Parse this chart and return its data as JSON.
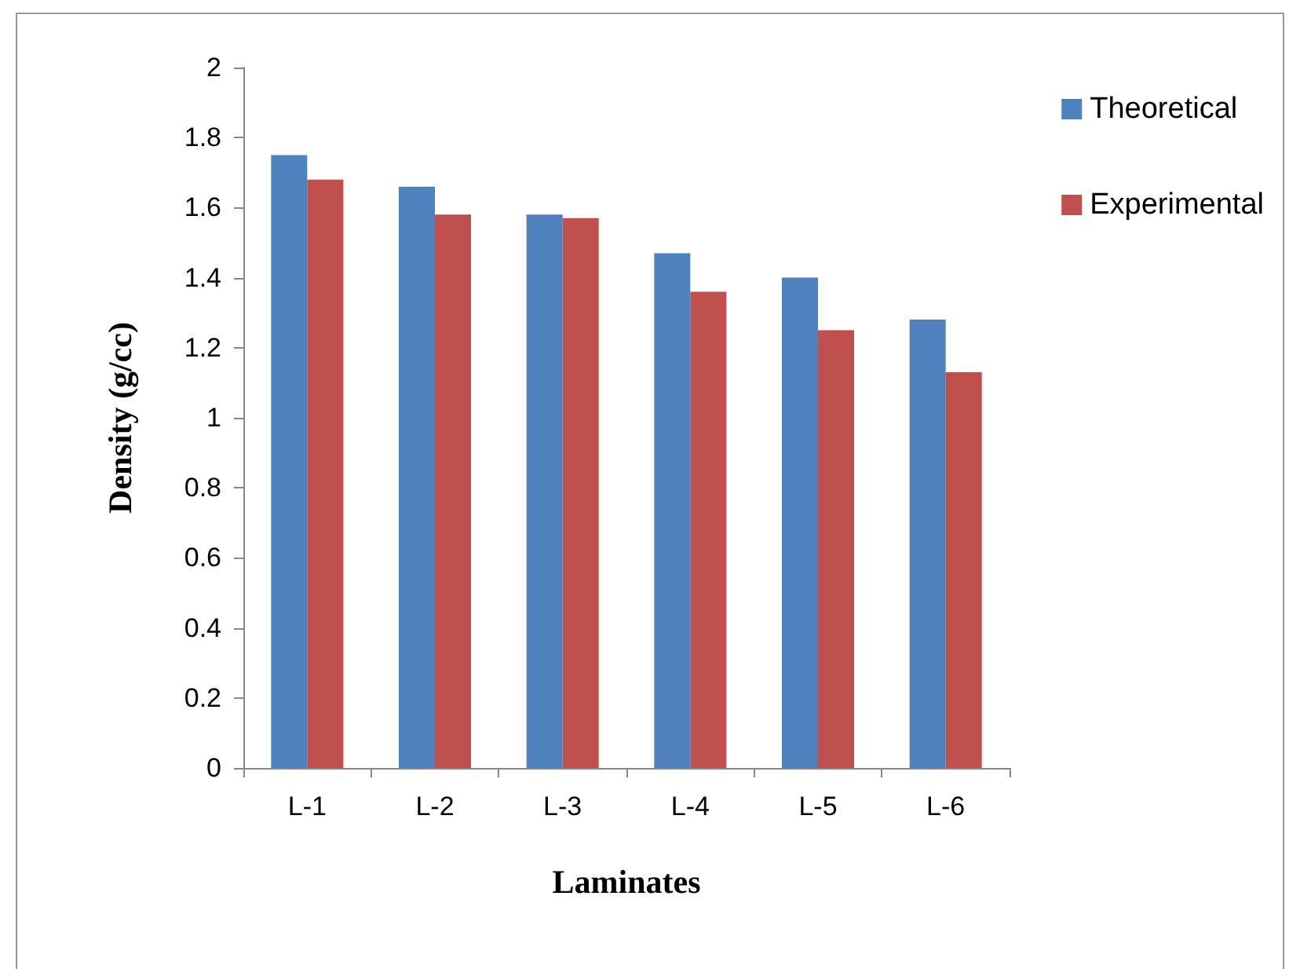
{
  "chart_data": {
    "type": "bar",
    "xlabel": "Laminates",
    "ylabel": "Density (g/cc)",
    "categories": [
      "L-1",
      "L-2",
      "L-3",
      "L-4",
      "L-5",
      "L-6"
    ],
    "series": [
      {
        "name": "Theoretical",
        "color": "#4f81bd",
        "values": [
          1.75,
          1.66,
          1.58,
          1.47,
          1.4,
          1.28
        ]
      },
      {
        "name": "Experimental",
        "color": "#c0504d",
        "values": [
          1.68,
          1.58,
          1.57,
          1.36,
          1.25,
          1.13
        ]
      }
    ],
    "ylim": [
      0,
      2
    ],
    "yticks": [
      0,
      0.2,
      0.4,
      0.6,
      0.8,
      1,
      1.2,
      1.4,
      1.6,
      1.8,
      2
    ],
    "grid": false,
    "legend": "right"
  }
}
